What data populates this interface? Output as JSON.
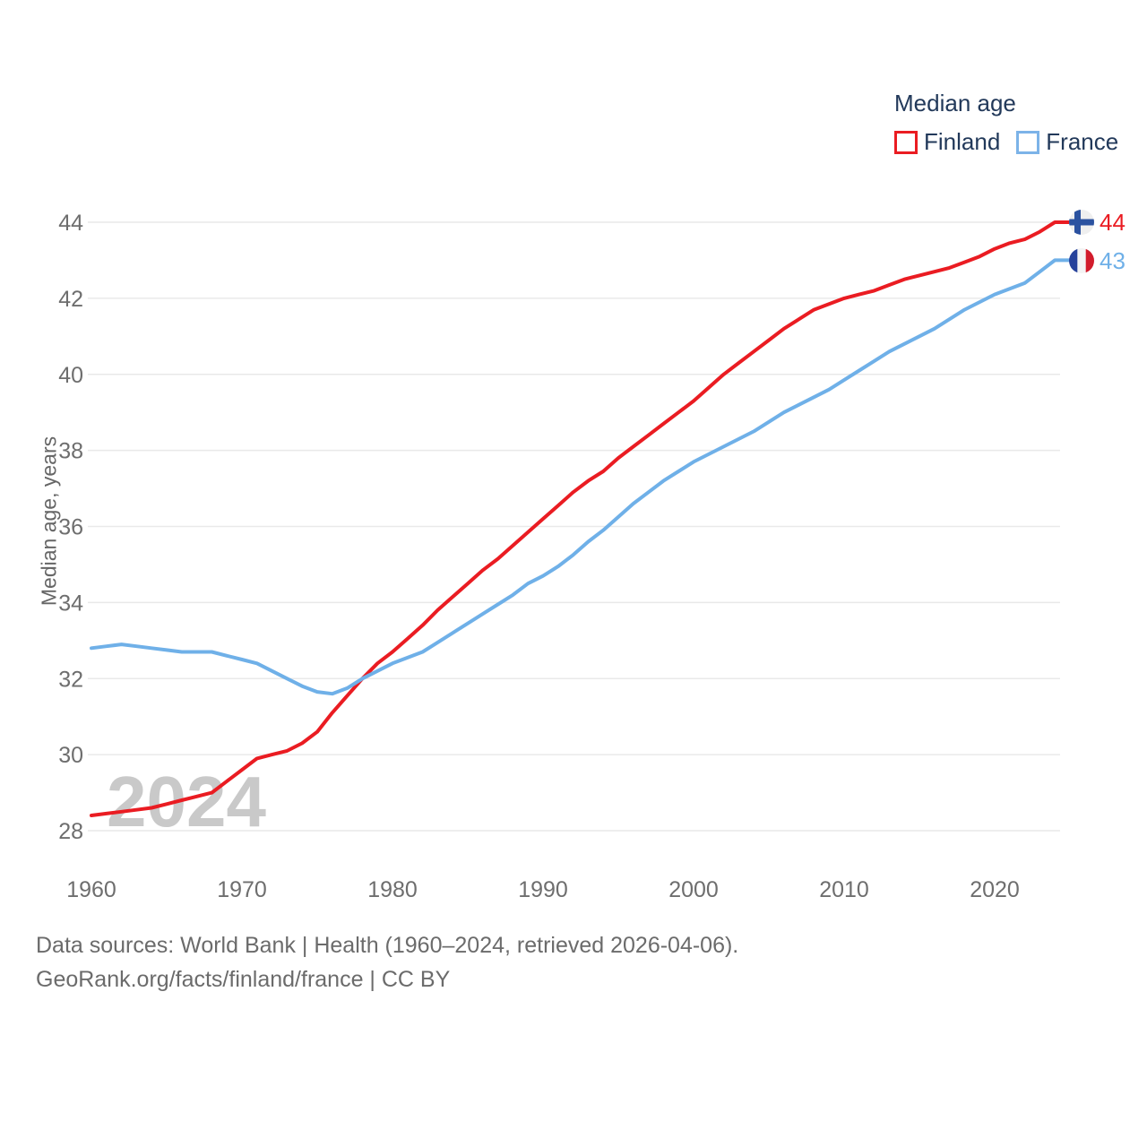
{
  "legend": {
    "title": "Median age",
    "items": [
      {
        "label": "Finland",
        "color": "#ea1c22"
      },
      {
        "label": "France",
        "color": "#7cb3e8"
      }
    ]
  },
  "chart_data": {
    "type": "line",
    "title": "Median age",
    "xlabel": "",
    "ylabel": "Median age, years",
    "ylim": [
      28,
      44
    ],
    "y_ticks": [
      28,
      30,
      32,
      34,
      36,
      38,
      40,
      42,
      44
    ],
    "x_ticks": [
      1960,
      1970,
      1980,
      1990,
      2000,
      2010,
      2020
    ],
    "grid": "horizontal",
    "legend_position": "top-right",
    "watermark": "2024",
    "x": [
      1960,
      1961,
      1962,
      1963,
      1964,
      1965,
      1966,
      1967,
      1968,
      1969,
      1970,
      1971,
      1972,
      1973,
      1974,
      1975,
      1976,
      1977,
      1978,
      1979,
      1980,
      1981,
      1982,
      1983,
      1984,
      1985,
      1986,
      1987,
      1988,
      1989,
      1990,
      1991,
      1992,
      1993,
      1994,
      1995,
      1996,
      1997,
      1998,
      1999,
      2000,
      2001,
      2002,
      2003,
      2004,
      2005,
      2006,
      2007,
      2008,
      2009,
      2010,
      2011,
      2012,
      2013,
      2014,
      2015,
      2016,
      2017,
      2018,
      2019,
      2020,
      2021,
      2022,
      2023,
      2024
    ],
    "series": [
      {
        "name": "Finland",
        "color": "#ea1c22",
        "values": [
          28.4,
          28.45,
          28.5,
          28.55,
          28.6,
          28.7,
          28.8,
          28.9,
          29.0,
          29.3,
          29.6,
          29.9,
          30.0,
          30.1,
          30.3,
          30.6,
          31.1,
          31.55,
          32.0,
          32.4,
          32.7,
          33.05,
          33.4,
          33.8,
          34.15,
          34.5,
          34.85,
          35.15,
          35.5,
          35.85,
          36.2,
          36.55,
          36.9,
          37.2,
          37.45,
          37.8,
          38.1,
          38.4,
          38.7,
          39.0,
          39.3,
          39.65,
          40.0,
          40.3,
          40.6,
          40.9,
          41.2,
          41.45,
          41.7,
          41.85,
          42.0,
          42.1,
          42.2,
          42.35,
          42.5,
          42.6,
          42.7,
          42.8,
          42.95,
          43.1,
          43.3,
          43.45,
          43.55,
          43.75,
          44.0
        ]
      },
      {
        "name": "France",
        "color": "#6fb0e8",
        "values": [
          32.8,
          32.85,
          32.9,
          32.85,
          32.8,
          32.75,
          32.7,
          32.7,
          32.7,
          32.6,
          32.5,
          32.4,
          32.2,
          32.0,
          31.8,
          31.65,
          31.6,
          31.75,
          32.0,
          32.2,
          32.4,
          32.55,
          32.7,
          32.95,
          33.2,
          33.45,
          33.7,
          33.95,
          34.2,
          34.5,
          34.7,
          34.95,
          35.25,
          35.6,
          35.9,
          36.25,
          36.6,
          36.9,
          37.2,
          37.45,
          37.7,
          37.9,
          38.1,
          38.3,
          38.5,
          38.75,
          39.0,
          39.2,
          39.4,
          39.6,
          39.85,
          40.1,
          40.35,
          40.6,
          40.8,
          41.0,
          41.2,
          41.45,
          41.7,
          41.9,
          42.1,
          42.25,
          42.4,
          42.7,
          43.0
        ]
      }
    ],
    "end_labels": [
      {
        "country": "Finland",
        "value": "44",
        "flag": "finland-flag-icon",
        "color": "#ea1c22"
      },
      {
        "country": "France",
        "value": "43",
        "flag": "france-flag-icon",
        "color": "#6fb0e8"
      }
    ]
  },
  "footer": {
    "line1": "Data sources: World Bank | Health (1960–2024, retrieved 2026-04-06).",
    "line2": "GeoRank.org/facts/finland/france | CC BY"
  },
  "colors": {
    "finland_line": "#ea1c22",
    "france_line": "#6fb0e8",
    "legend_text": "#22395a",
    "axis_text": "#6e6e6e",
    "gridline": "#e9e9e9",
    "watermark": "#c9c9c9",
    "footer_text": "#6b6b6b",
    "finland_flag_blue": "#2b52a0",
    "france_flag_blue": "#26429b",
    "france_flag_red": "#d21c2c"
  }
}
